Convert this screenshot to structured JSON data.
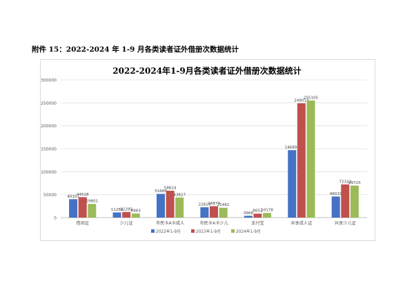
{
  "document": {
    "heading": "附件 15：2022-2024 年 1-9 月各类读者证外借册次数据统计"
  },
  "chart_data": {
    "type": "bar",
    "title": "2022-2024年1-9月各类读者证外借册次数据统计",
    "xlabel": "",
    "ylabel": "",
    "ylim": [
      0,
      300000
    ],
    "yticks": [
      0,
      50000,
      100000,
      150000,
      200000,
      250000,
      300000
    ],
    "grid": true,
    "legend_position": "bottom",
    "categories": [
      "借阅证",
      "少儿证",
      "市民卡A卡成人",
      "市民卡A卡少儿",
      "支付宝",
      "共享成人证",
      "共享少儿证"
    ],
    "series": [
      {
        "name": "2022年1-9月",
        "color": "#4472c4",
        "values": [
          40101,
          11284,
          51684,
          22619,
          3968,
          146893,
          46019
        ]
      },
      {
        "name": "2023年1-9月",
        "color": "#c0504d",
        "values": [
          44528,
          12295,
          58624,
          24879,
          8652,
          249014,
          72323
        ]
      },
      {
        "name": "2024年1-9月",
        "color": "#9bbb59",
        "values": [
          29801,
          8963,
          43827,
          21462,
          10178,
          255105,
          69725
        ]
      }
    ]
  }
}
